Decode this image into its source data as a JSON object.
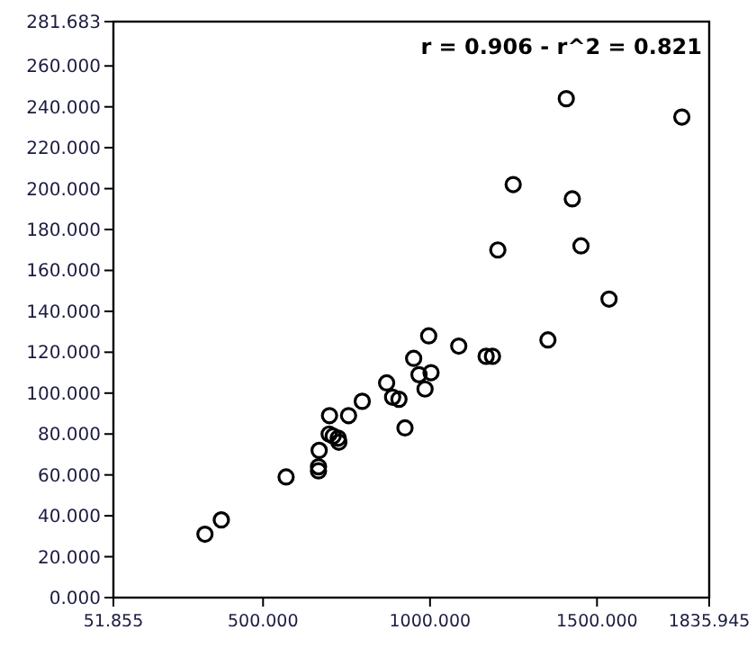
{
  "chart_data": {
    "type": "scatter",
    "marker": "circle",
    "grid": false,
    "annotations": [
      "r = 0.906 - r^2 = 0.821"
    ],
    "xlim": [
      51.855,
      1835.945
    ],
    "xticks": [
      {
        "value": 51.855,
        "label": "51.855"
      },
      {
        "value": 500,
        "label": "500.000"
      },
      {
        "value": 1000,
        "label": "1000.000"
      },
      {
        "value": 1500,
        "label": "1500.000"
      },
      {
        "value": 1835.945,
        "label": "1835.945"
      }
    ],
    "ylim": [
      0,
      281.683
    ],
    "yticks": [
      {
        "value": 0,
        "label": "0.000"
      },
      {
        "value": 20,
        "label": "20.000"
      },
      {
        "value": 40,
        "label": "40.000"
      },
      {
        "value": 60,
        "label": "60.000"
      },
      {
        "value": 80,
        "label": "80.000"
      },
      {
        "value": 100,
        "label": "100.000"
      },
      {
        "value": 120,
        "label": "120.000"
      },
      {
        "value": 140,
        "label": "140.000"
      },
      {
        "value": 160,
        "label": "160.000"
      },
      {
        "value": 180,
        "label": "180.000"
      },
      {
        "value": 200,
        "label": "200.000"
      },
      {
        "value": 220,
        "label": "220.000"
      },
      {
        "value": 240,
        "label": "240.000"
      },
      {
        "value": 260,
        "label": "260.000"
      },
      {
        "value": 281.683,
        "label": "281.683"
      }
    ],
    "series": [
      {
        "color": "#000000",
        "x": [
          326,
          375,
          569,
          666,
          666,
          668,
          698,
          710,
          725,
          727,
          699,
          756,
          797,
          870,
          888,
          907,
          925,
          951,
          967,
          985,
          996,
          1003,
          1086,
          1168,
          1187,
          1353,
          1536,
          1408,
          1754,
          1249,
          1426,
          1203,
          1452
        ],
        "values": [
          31,
          38,
          59,
          62,
          64,
          72,
          80,
          79,
          78,
          76,
          89,
          89,
          96,
          105,
          98,
          97,
          83,
          117,
          109,
          102,
          128,
          110,
          123,
          118,
          118,
          126,
          146,
          244,
          235,
          202,
          195,
          170,
          172
        ]
      }
    ]
  }
}
